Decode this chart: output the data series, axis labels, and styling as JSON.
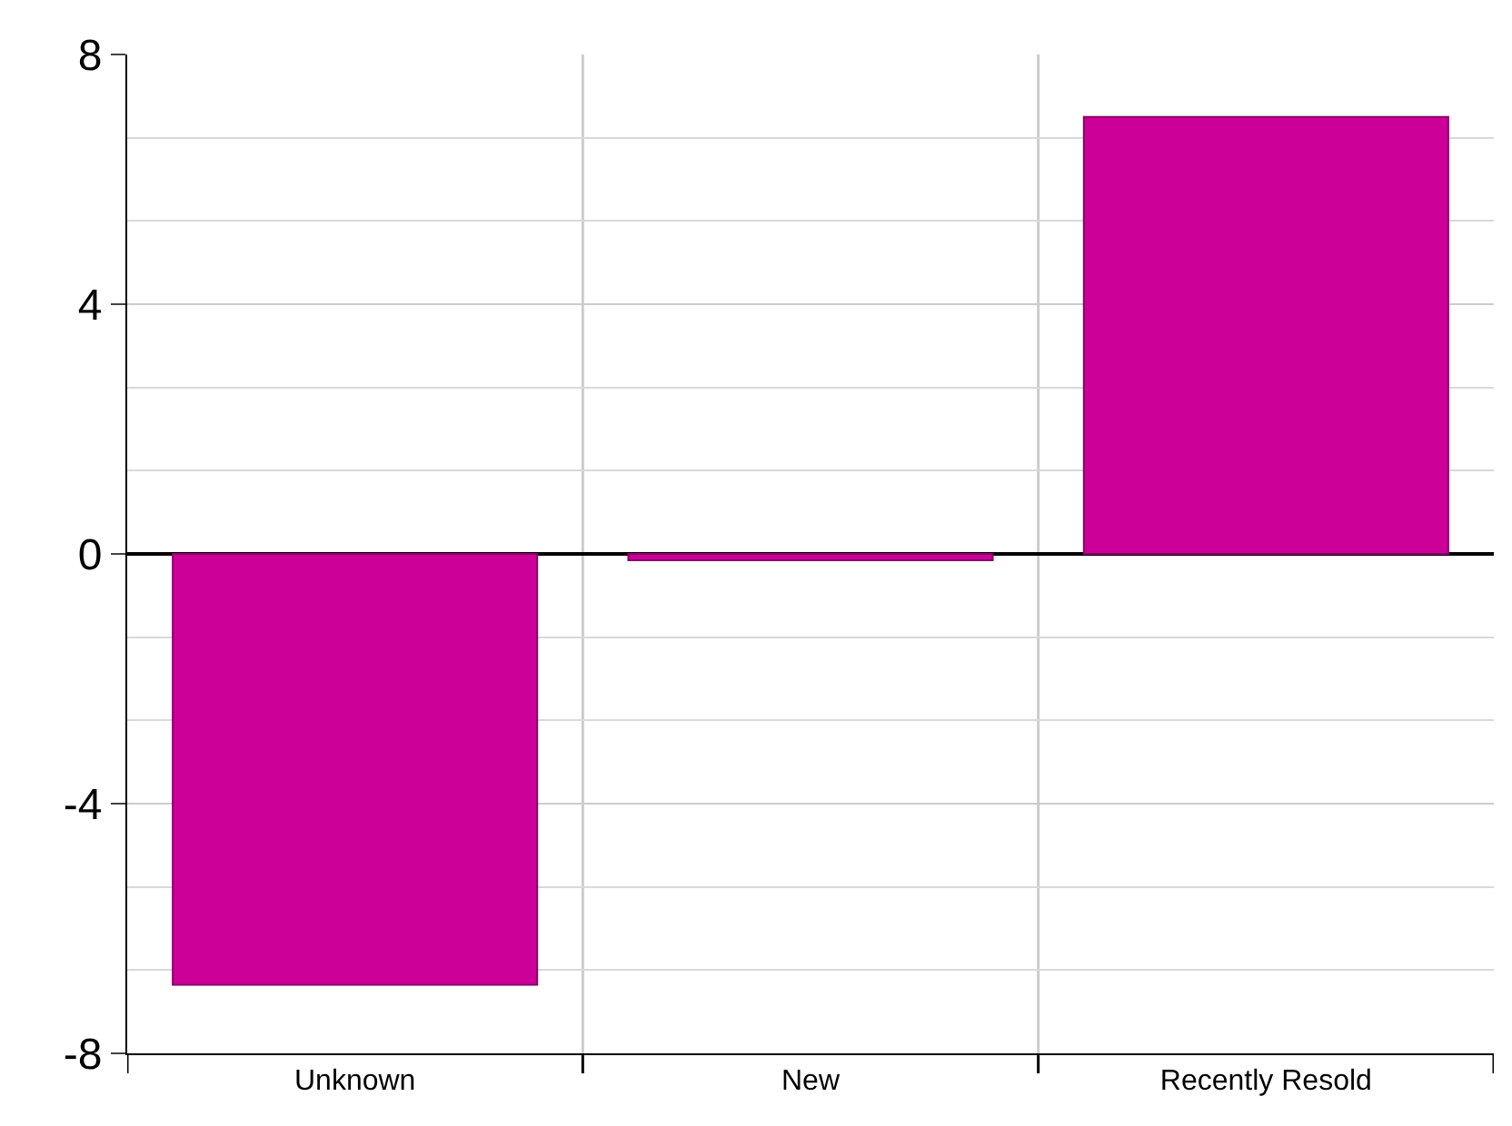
{
  "chart_data": {
    "type": "bar",
    "categories": [
      "Unknown",
      "New",
      "Recently Resold"
    ],
    "values": [
      -6.9,
      -0.1,
      7.0
    ],
    "color": "#cc0099",
    "ylim": [
      -8,
      8
    ],
    "yticks": [
      -8,
      -4,
      0,
      4,
      8
    ],
    "grid": true,
    "legend": false
  }
}
